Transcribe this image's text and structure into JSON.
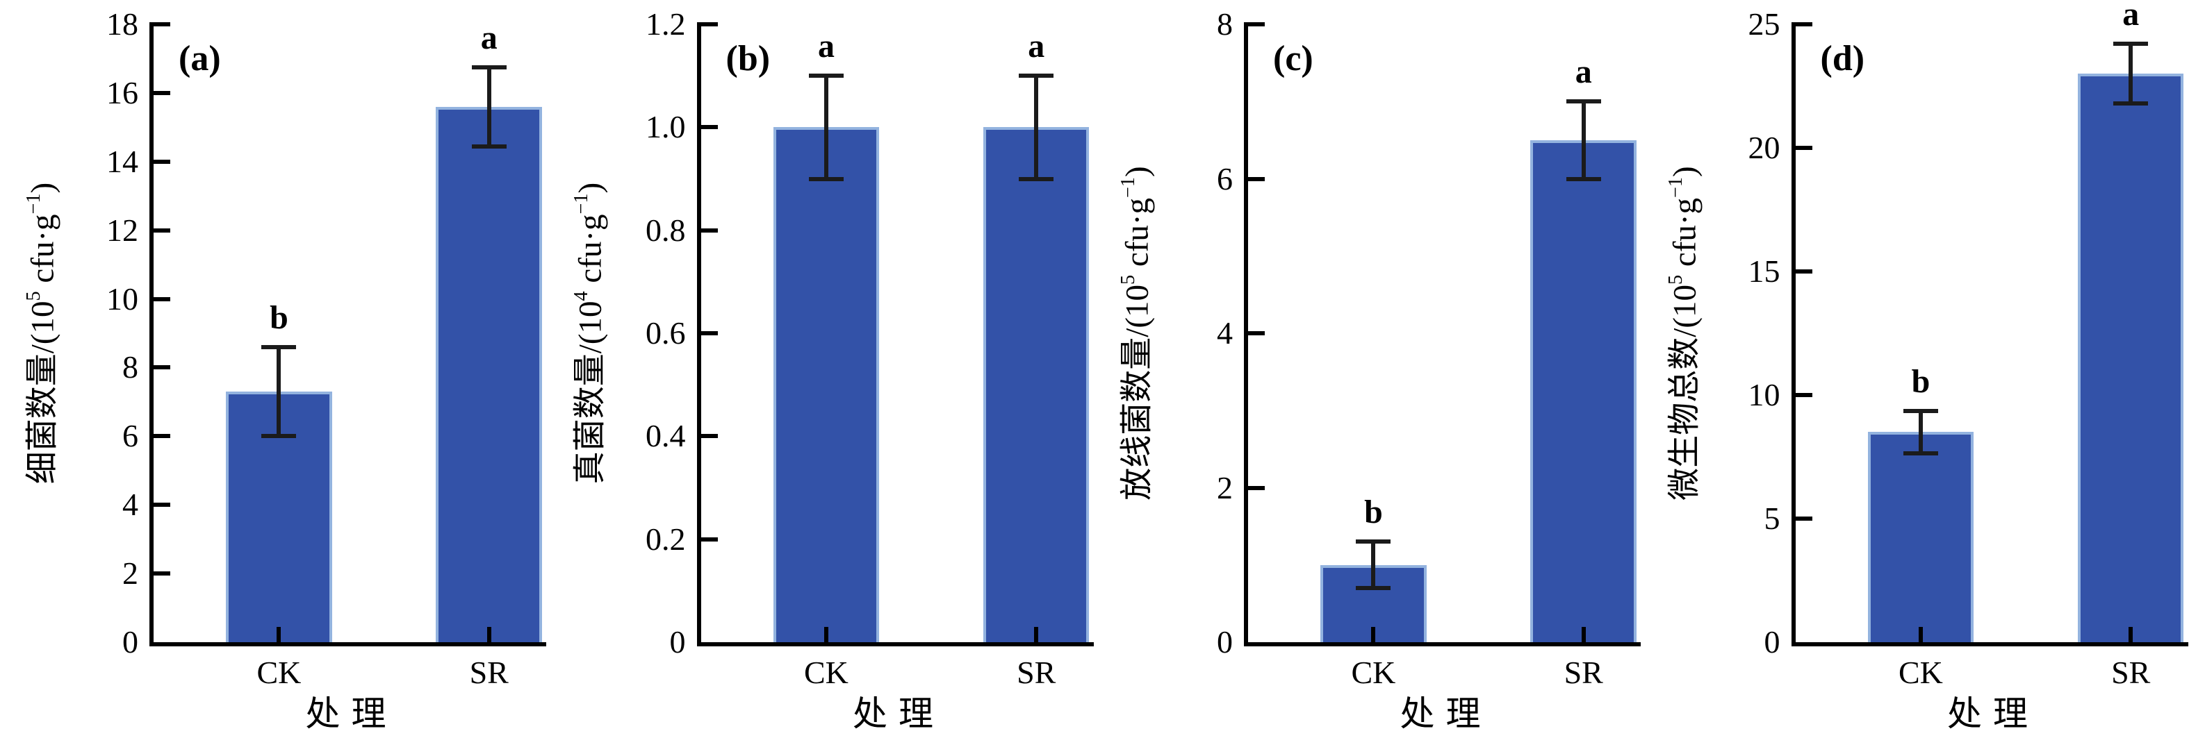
{
  "figure": {
    "description_labels": {
      "treatment_categories": [
        "CK",
        "SR"
      ]
    },
    "colors": {
      "background": "#ffffff",
      "bar_fill": "#3352a8",
      "bar_border": "#93b3df",
      "error_bar": "#1b1b1b",
      "axis": "#000000",
      "text": "#000000"
    }
  },
  "chart_data": [
    {
      "type": "bar",
      "panel_label": "(a)",
      "ylabel": "细菌数量/(10⁵ cfu·g⁻¹)",
      "ylabel_parts": [
        {
          "t": "细菌数量/(10"
        },
        {
          "t": "5",
          "sup": true
        },
        {
          "t": " cfu·g"
        },
        {
          "t": "−1",
          "sup": true
        },
        {
          "t": ")"
        }
      ],
      "xlabel": "处理",
      "categories": [
        "CK",
        "SR"
      ],
      "values": [
        7.3,
        15.6
      ],
      "errors": [
        1.3,
        1.15
      ],
      "sig_letters": [
        "b",
        "a"
      ],
      "ylim": [
        0,
        18
      ],
      "yticks": [
        0,
        2,
        4,
        6,
        8,
        10,
        12,
        14,
        16,
        18
      ],
      "ytick_labels": [
        "0",
        "2",
        "4",
        "6",
        "8",
        "10",
        "12",
        "14",
        "16",
        "18"
      ],
      "grid": false,
      "legend": "none"
    },
    {
      "type": "bar",
      "panel_label": "(b)",
      "ylabel": "真菌数量/(10⁴ cfu·g⁻¹)",
      "ylabel_parts": [
        {
          "t": "真菌数量/(10"
        },
        {
          "t": "4",
          "sup": true
        },
        {
          "t": " cfu·g"
        },
        {
          "t": "−1",
          "sup": true
        },
        {
          "t": ")"
        }
      ],
      "xlabel": "处理",
      "categories": [
        "CK",
        "SR"
      ],
      "values": [
        1.0,
        1.0
      ],
      "errors": [
        0.1,
        0.1
      ],
      "sig_letters": [
        "a",
        "a"
      ],
      "ylim": [
        0,
        1.2
      ],
      "yticks": [
        0,
        0.2,
        0.4,
        0.6,
        0.8,
        1.0,
        1.2
      ],
      "ytick_labels": [
        "0",
        "0.2",
        "0.4",
        "0.6",
        "0.8",
        "1.0",
        "1.2"
      ],
      "grid": false,
      "legend": "none"
    },
    {
      "type": "bar",
      "panel_label": "(c)",
      "ylabel": "放线菌数量/(10⁵ cfu·g⁻¹)",
      "ylabel_parts": [
        {
          "t": "放线菌数量/(10"
        },
        {
          "t": "5",
          "sup": true
        },
        {
          "t": " cfu·g"
        },
        {
          "t": "−1",
          "sup": true
        },
        {
          "t": ")"
        }
      ],
      "xlabel": "处理",
      "categories": [
        "CK",
        "SR"
      ],
      "values": [
        1.0,
        6.5
      ],
      "errors": [
        0.3,
        0.5
      ],
      "sig_letters": [
        "b",
        "a"
      ],
      "ylim": [
        0,
        8
      ],
      "yticks": [
        0,
        2,
        4,
        6,
        8
      ],
      "ytick_labels": [
        "0",
        "2",
        "4",
        "6",
        "8"
      ],
      "grid": false,
      "legend": "none"
    },
    {
      "type": "bar",
      "panel_label": "(d)",
      "ylabel": "微生物总数/(10⁵ cfu·g⁻¹)",
      "ylabel_parts": [
        {
          "t": "微生物总数/(10"
        },
        {
          "t": "5",
          "sup": true
        },
        {
          "t": " cfu·g"
        },
        {
          "t": "−1",
          "sup": true
        },
        {
          "t": ")"
        }
      ],
      "xlabel": "处理",
      "categories": [
        "CK",
        "SR"
      ],
      "values": [
        8.5,
        23.0
      ],
      "errors": [
        0.85,
        1.2
      ],
      "sig_letters": [
        "b",
        "a"
      ],
      "ylim": [
        0,
        25
      ],
      "yticks": [
        0,
        5,
        10,
        15,
        20,
        25
      ],
      "ytick_labels": [
        "0",
        "5",
        "10",
        "15",
        "20",
        "25"
      ],
      "grid": false,
      "legend": "none"
    }
  ]
}
